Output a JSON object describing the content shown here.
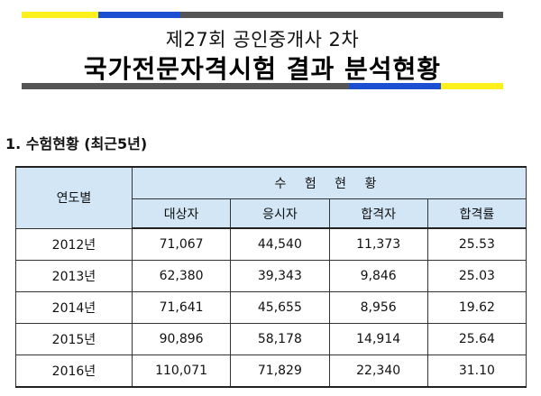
{
  "banner": {
    "title_line1": "제27회 공인중개사 2차",
    "title_line2": "국가전문자격시험 결과 분석현황",
    "colors": {
      "yellow": "#fef01d",
      "blue": "#1d4fd2",
      "gray": "#555555"
    }
  },
  "section": {
    "number": "1.",
    "title": "수험현황",
    "subtitle": "(최근5년)"
  },
  "table": {
    "header_color": "#d3e6f5",
    "row_header_label": "연도별",
    "group_label": "수 험 현 황",
    "columns": [
      "대상자",
      "응시자",
      "합격자",
      "합격률"
    ],
    "rows": [
      {
        "year": "2012년",
        "values": [
          "71,067",
          "44,540",
          "11,373",
          "25.53"
        ]
      },
      {
        "year": "2013년",
        "values": [
          "62,380",
          "39,343",
          "9,846",
          "25.03"
        ]
      },
      {
        "year": "2014년",
        "values": [
          "71,641",
          "45,655",
          "8,956",
          "19.62"
        ]
      },
      {
        "year": "2015년",
        "values": [
          "90,896",
          "58,178",
          "14,914",
          "25.64"
        ]
      },
      {
        "year": "2016년",
        "values": [
          "110,071",
          "71,829",
          "22,340",
          "31.10"
        ]
      }
    ]
  }
}
